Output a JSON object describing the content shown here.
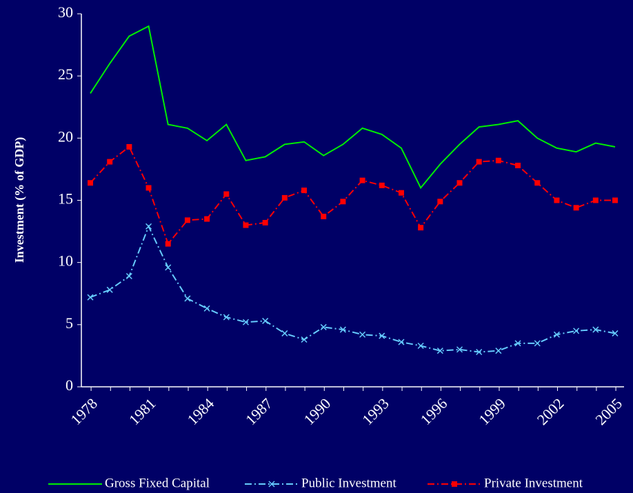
{
  "chart_data": {
    "type": "line",
    "y_label": "Investment (% of GDP)",
    "categories": [
      "1978",
      null,
      null,
      "1981",
      null,
      null,
      "1984",
      null,
      null,
      "1987",
      null,
      null,
      "1990",
      null,
      null,
      "1993",
      null,
      null,
      "1996",
      null,
      null,
      "1999",
      null,
      null,
      "2002",
      null,
      null,
      "2005"
    ],
    "series": [
      {
        "name": "Gross Fixed Capital",
        "color": "#00ee00",
        "values": [
          23.6,
          26.0,
          28.2,
          29.0,
          21.1,
          20.8,
          19.8,
          21.1,
          18.2,
          18.5,
          19.5,
          19.7,
          18.6,
          19.5,
          20.8,
          20.3,
          19.2,
          16.0,
          17.9,
          19.5,
          20.9,
          21.1,
          21.4,
          20.0,
          19.2,
          18.9,
          19.6,
          19.3
        ]
      },
      {
        "name": "Public Investment",
        "color": "#66ccff",
        "marker": "x",
        "values": [
          7.2,
          7.8,
          8.9,
          12.9,
          9.6,
          7.1,
          6.3,
          5.6,
          5.2,
          5.3,
          4.3,
          3.8,
          4.8,
          4.6,
          4.2,
          4.1,
          3.6,
          3.3,
          2.9,
          3.0,
          2.8,
          2.9,
          3.5,
          3.5,
          4.2,
          4.5,
          4.6,
          4.3
        ]
      },
      {
        "name": "Private Investment",
        "color": "#ff0000",
        "marker": "square",
        "values": [
          16.4,
          18.1,
          19.3,
          16.0,
          11.5,
          13.4,
          13.5,
          15.5,
          13.0,
          13.2,
          15.2,
          15.8,
          13.7,
          14.9,
          16.6,
          16.2,
          15.6,
          12.8,
          14.9,
          16.4,
          18.1,
          18.2,
          17.8,
          16.4,
          15.0,
          14.4,
          15.0,
          15.0
        ]
      }
    ],
    "ylim": [
      0,
      30
    ],
    "yticks": [
      0,
      5,
      10,
      15,
      20,
      25,
      30
    ],
    "grid": false,
    "legend": "bottom"
  }
}
